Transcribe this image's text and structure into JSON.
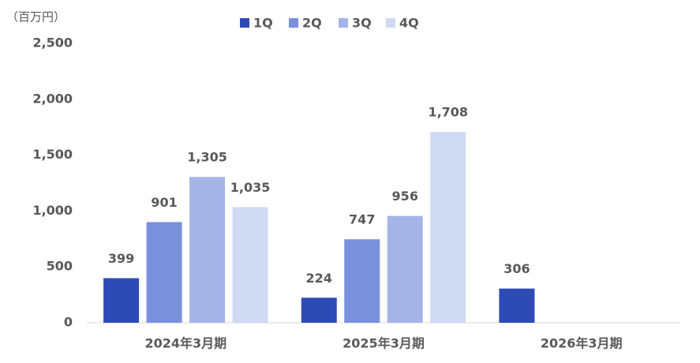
{
  "chart_data": {
    "type": "bar",
    "y_label": "（百万円）",
    "categories": [
      "2024年3月期",
      "2025年3月期",
      "2026年3月期"
    ],
    "series": [
      {
        "name": "1Q",
        "color": "#2e4bb5",
        "values": [
          399,
          224,
          306
        ],
        "value_labels": [
          "399",
          "224",
          "306"
        ]
      },
      {
        "name": "2Q",
        "color": "#7990dc",
        "values": [
          901,
          747,
          null
        ],
        "value_labels": [
          "901",
          "747",
          null
        ]
      },
      {
        "name": "3Q",
        "color": "#a5b4e7",
        "values": [
          1305,
          956,
          null
        ],
        "value_labels": [
          "1,305",
          "956",
          null
        ]
      },
      {
        "name": "4Q",
        "color": "#d0daf3",
        "values": [
          1035,
          1708,
          null
        ],
        "value_labels": [
          "1,035",
          "1,708",
          null
        ]
      }
    ],
    "ylim": [
      0,
      2500
    ],
    "yticks": [
      0,
      500,
      {
        "value": 1000,
        "label": "1,000"
      },
      {
        "value": 1500,
        "label": "1,500"
      },
      {
        "value": 2000,
        "label": "2,000"
      },
      {
        "value": 2500,
        "label": "2,500"
      }
    ],
    "grid": false,
    "legend": "top"
  }
}
